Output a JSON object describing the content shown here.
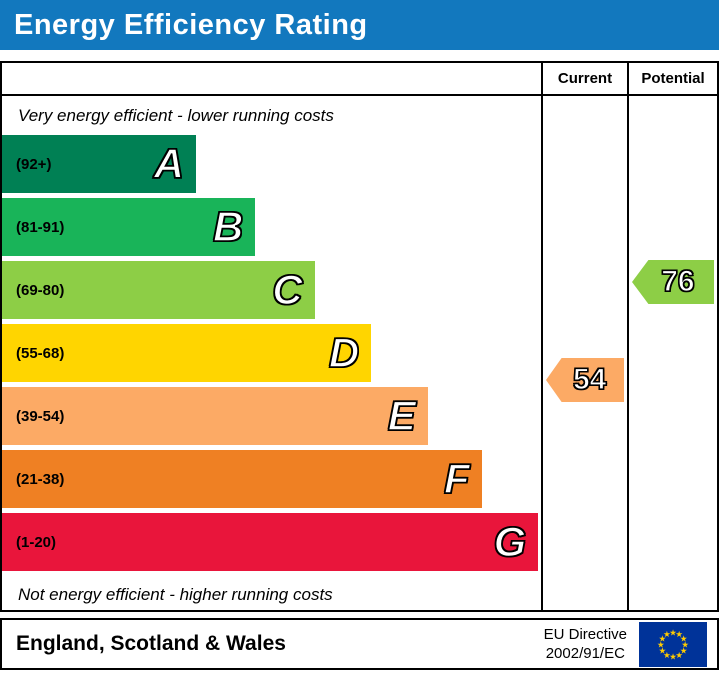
{
  "title": "Energy Efficiency Rating",
  "header": {
    "current_label": "Current",
    "potential_label": "Potential"
  },
  "notes": {
    "top": "Very energy efficient - lower running costs",
    "bottom": "Not energy efficient - higher running costs"
  },
  "chart_data": {
    "type": "bar",
    "title": "Energy Efficiency Rating",
    "bands": [
      {
        "letter": "A",
        "range": "(92+)",
        "color": "#008054",
        "width_pct": 36
      },
      {
        "letter": "B",
        "range": "(81-91)",
        "color": "#19b459",
        "width_pct": 47
      },
      {
        "letter": "C",
        "range": "(69-80)",
        "color": "#8dce46",
        "width_pct": 58
      },
      {
        "letter": "D",
        "range": "(55-68)",
        "color": "#ffd500",
        "width_pct": 68.5
      },
      {
        "letter": "E",
        "range": "(39-54)",
        "color": "#fcaa65",
        "width_pct": 79
      },
      {
        "letter": "F",
        "range": "(21-38)",
        "color": "#ef8023",
        "width_pct": 89
      },
      {
        "letter": "G",
        "range": "(1-20)",
        "color": "#e9153b",
        "width_pct": 99.5
      }
    ],
    "current": {
      "value": "54",
      "color": "#fcaa65",
      "band": "E"
    },
    "potential": {
      "value": "76",
      "color": "#8dce46",
      "band": "C"
    }
  },
  "footer": {
    "region": "England, Scotland & Wales",
    "directive": [
      "EU Directive",
      "2002/91/EC"
    ]
  },
  "colors": {
    "title_bg": "#1278be",
    "border": "#000000",
    "eu_flag_bg": "#003399",
    "eu_star": "#ffcc00"
  }
}
